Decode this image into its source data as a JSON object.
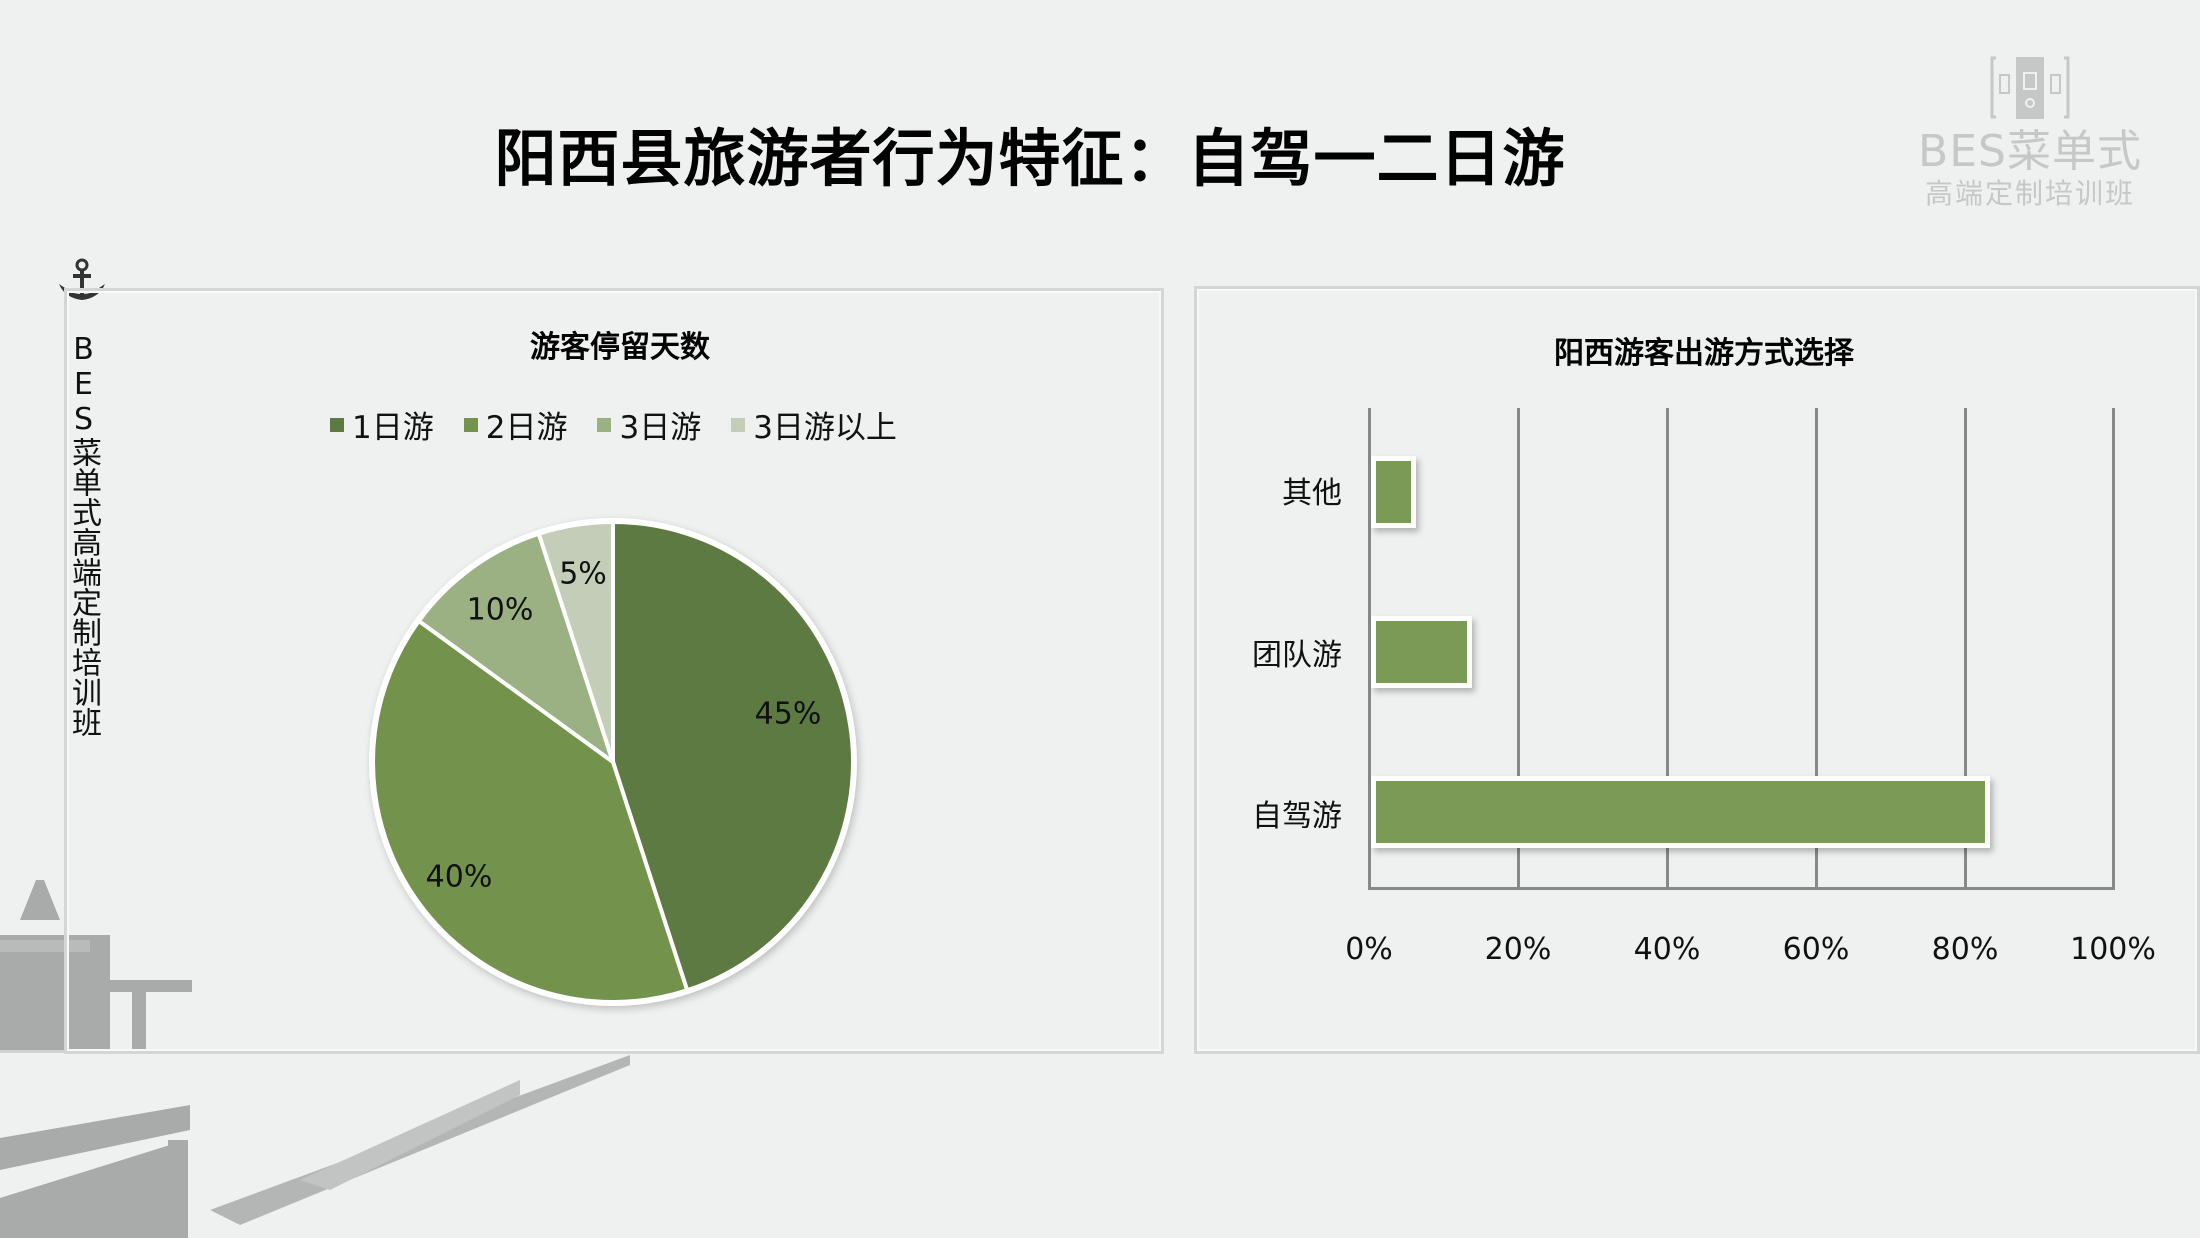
{
  "slide": {
    "title": "阳西县旅游者行为特征：自驾一二日游",
    "logo": {
      "brand": "BES菜单式",
      "subtitle": "高端定制培训班",
      "icon": "book-logo-icon"
    },
    "side_text": "BES菜单式高端定制培训班",
    "side_icon": "anchor-icon"
  },
  "colors": {
    "background": "#eef1f0",
    "series_1day": "#5e7a43",
    "series_2day": "#73934c",
    "series_3day": "#9bb183",
    "series_3plus": "#c3cdb7",
    "bar": "#7a9a55",
    "grid": "#868a89"
  },
  "chart_data": [
    {
      "type": "pie",
      "title": "游客停留天数",
      "categories": [
        "1日游",
        "2日游",
        "3日游",
        "3日游以上"
      ],
      "values": [
        45,
        40,
        10,
        5
      ],
      "labels": [
        "45%",
        "40%",
        "10%",
        "5%"
      ],
      "legend_position": "top",
      "start_angle": "12 o'clock, clockwise"
    },
    {
      "type": "bar",
      "orientation": "horizontal",
      "title": "阳西游客出游方式选择",
      "categories": [
        "其他",
        "团队游",
        "自驾游"
      ],
      "values": [
        5,
        12.5,
        82
      ],
      "xlabel": "",
      "ylabel": "",
      "xlim": [
        0,
        100
      ],
      "x_ticks": [
        "0%",
        "20%",
        "40%",
        "60%",
        "80%",
        "100%"
      ],
      "grid": true,
      "legend": false
    }
  ],
  "pie": {
    "title": "游客停留天数",
    "legend": [
      {
        "label": "1日游"
      },
      {
        "label": "2日游"
      },
      {
        "label": "3日游"
      },
      {
        "label": "3日游以上"
      }
    ],
    "data_labels": [
      "45%",
      "40%",
      "10%",
      "5%"
    ]
  },
  "bar": {
    "title": "阳西游客出游方式选择",
    "categories": [
      "其他",
      "团队游",
      "自驾游"
    ],
    "ticks": [
      "0%",
      "20%",
      "40%",
      "60%",
      "80%",
      "100%"
    ]
  }
}
